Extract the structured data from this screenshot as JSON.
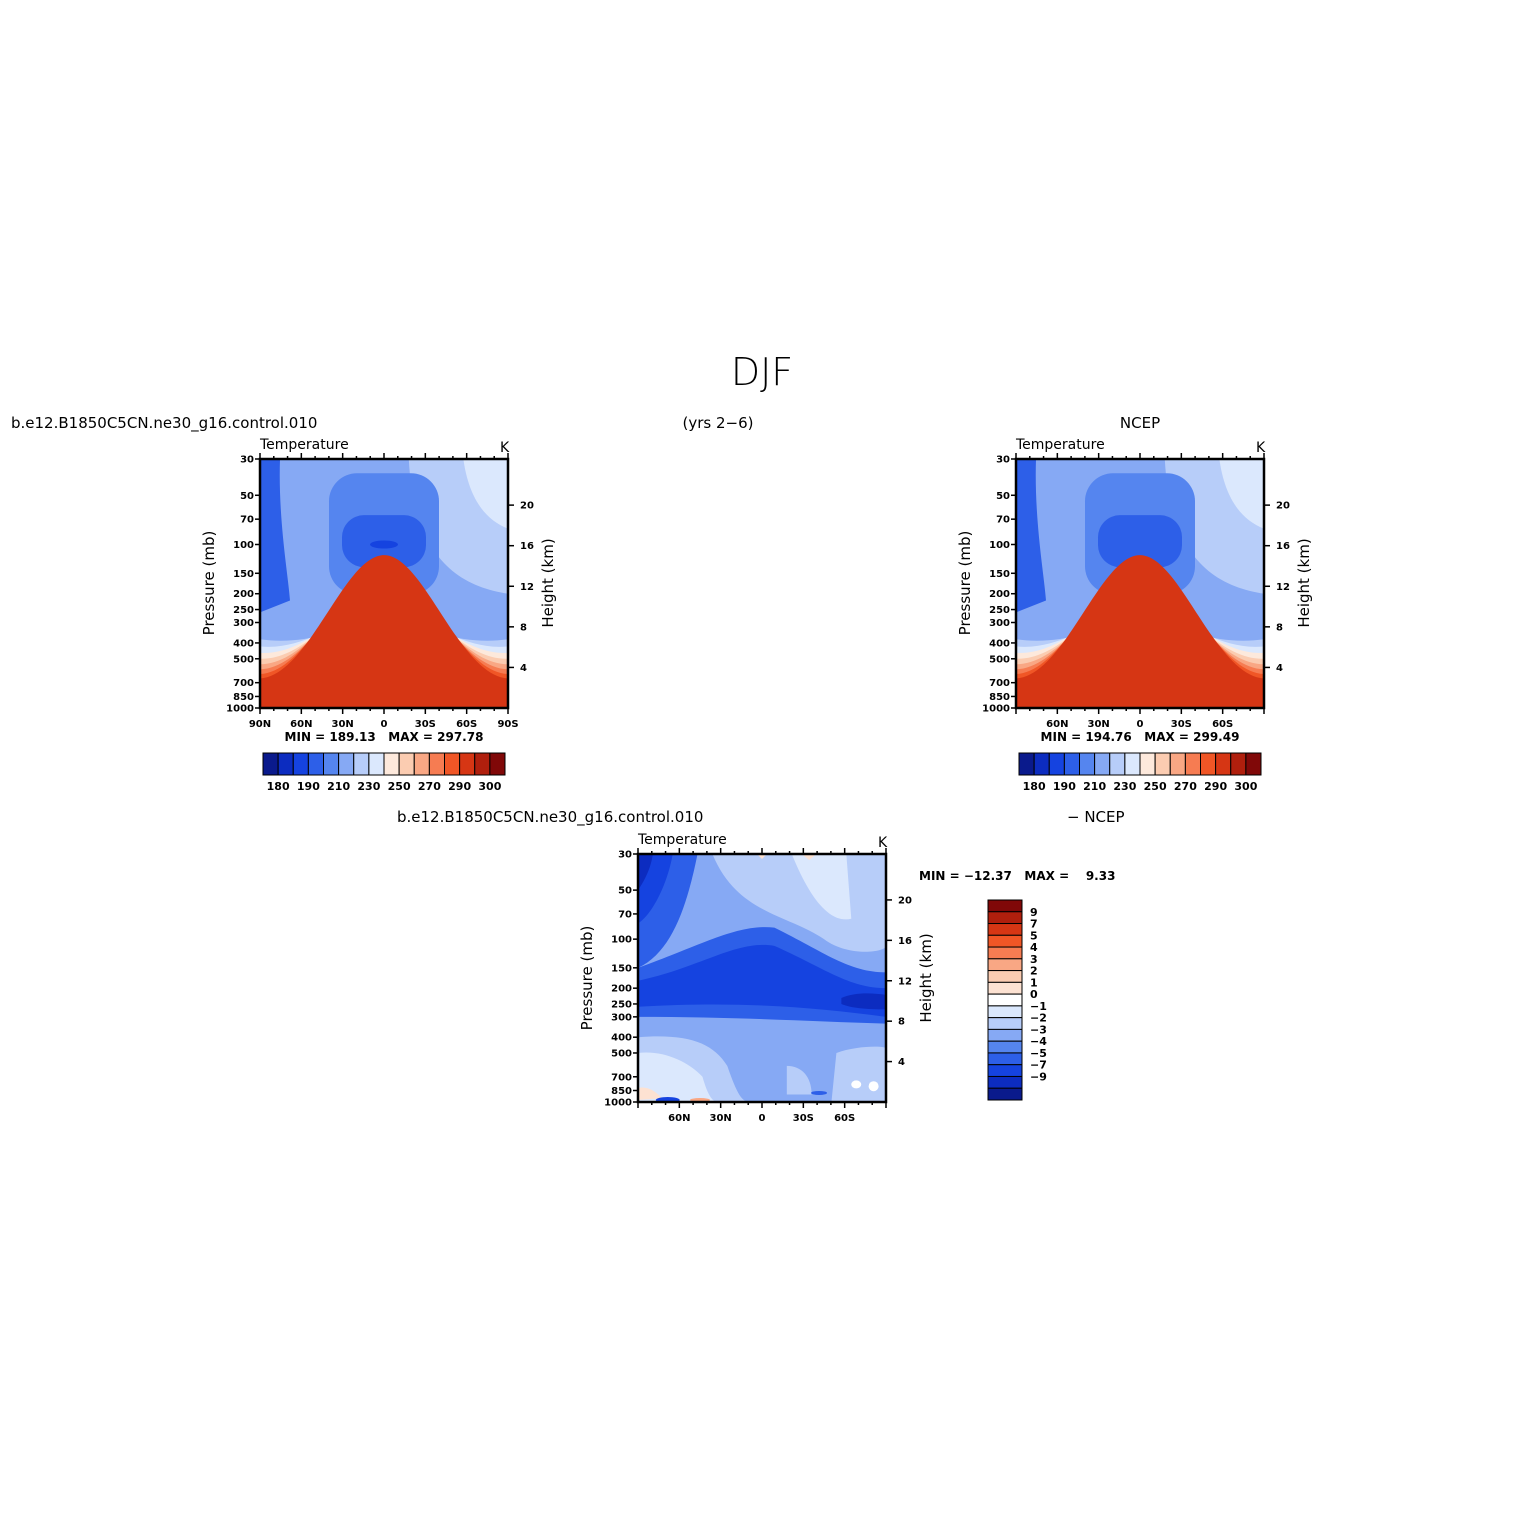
{
  "figure": {
    "title": "DJF",
    "case_name": "b.e12.B1850C5CN.ne30_g16.control.010",
    "years": "(yrs 2−6)",
    "obs_name": "NCEP",
    "diff_case_name": "b.e12.B1850C5CN.ne30_g16.control.010",
    "diff_suffix": "− NCEP"
  },
  "axes": {
    "pressure_label": "Pressure (mb)",
    "height_label": "Height (km)",
    "pressure_ticks": [
      "30",
      "50",
      "70",
      "100",
      "150",
      "200",
      "250",
      "300",
      "400",
      "500",
      "700",
      "850",
      "1000"
    ],
    "height_ticks": [
      "4",
      "8",
      "12",
      "16",
      "20"
    ],
    "lat_ticks_full": [
      "90N",
      "60N",
      "30N",
      "0",
      "30S",
      "60S",
      "90S"
    ],
    "lat_ticks_short": [
      "60N",
      "30N",
      "0",
      "30S",
      "60S"
    ]
  },
  "colors": {
    "abs_palette": [
      "#0a1a8c",
      "#0c2cc0",
      "#1543e0",
      "#2d5fe8",
      "#5585ef",
      "#86a9f4",
      "#b7cdf9",
      "#dbe8fd",
      "#fde9dc",
      "#fbccb1",
      "#f9a784",
      "#f67c52",
      "#f05626",
      "#d63614",
      "#b01f0d",
      "#800808"
    ],
    "diff_palette": [
      "#0a1a8c",
      "#0c2cc0",
      "#1543e0",
      "#2d5fe8",
      "#5585ef",
      "#86a9f4",
      "#b7cdf9",
      "#dbe8fd",
      "#ffffff",
      "#fde2d2",
      "#fbccb1",
      "#f9a784",
      "#f67c52",
      "#f05626",
      "#d63614",
      "#b01f0d",
      "#800808"
    ]
  },
  "chart_data": [
    {
      "type": "heatmap",
      "panel": "model",
      "variable": "Temperature",
      "units": "K",
      "xlabel": "",
      "ylabel": "Pressure (mb)",
      "y2label": "Height (km)",
      "x_ticks": [
        "90N",
        "60N",
        "30N",
        "0",
        "30S",
        "60S",
        "90S"
      ],
      "y_scale": "log",
      "ylim": [
        1000,
        30
      ],
      "stats": "MIN = 189.13   MAX = 297.78",
      "colorbar_labels": [
        "180",
        "190",
        "210",
        "230",
        "250",
        "270",
        "290",
        "300"
      ],
      "contour_levels": [
        180,
        185,
        190,
        200,
        210,
        220,
        230,
        240,
        250,
        260,
        270,
        280,
        290,
        295,
        300
      ]
    },
    {
      "type": "heatmap",
      "panel": "obs",
      "variable": "Temperature",
      "units": "K",
      "xlabel": "",
      "ylabel": "Pressure (mb)",
      "y2label": "Height (km)",
      "x_ticks": [
        "60N",
        "30N",
        "0",
        "30S",
        "60S"
      ],
      "y_scale": "log",
      "ylim": [
        1000,
        30
      ],
      "stats": "MIN = 194.76   MAX = 299.49",
      "colorbar_labels": [
        "180",
        "190",
        "210",
        "230",
        "250",
        "270",
        "290",
        "300"
      ],
      "contour_levels": [
        180,
        185,
        190,
        200,
        210,
        220,
        230,
        240,
        250,
        260,
        270,
        280,
        290,
        295,
        300
      ]
    },
    {
      "type": "heatmap",
      "panel": "difference",
      "variable": "Temperature",
      "units": "K",
      "xlabel": "",
      "ylabel": "Pressure (mb)",
      "y2label": "Height (km)",
      "x_ticks": [
        "60N",
        "30N",
        "0",
        "30S",
        "60S"
      ],
      "y_scale": "log",
      "ylim": [
        1000,
        30
      ],
      "stats": "MIN = −12.37   MAX =    9.33",
      "colorbar_labels": [
        "9",
        "7",
        "5",
        "4",
        "3",
        "2",
        "1",
        "0",
        "−1",
        "−2",
        "−3",
        "−4",
        "−5",
        "−7",
        "−9"
      ],
      "contour_levels": [
        -9,
        -7,
        -5,
        -4,
        -3,
        -2,
        -1,
        0,
        1,
        2,
        3,
        4,
        5,
        7,
        9
      ]
    }
  ]
}
